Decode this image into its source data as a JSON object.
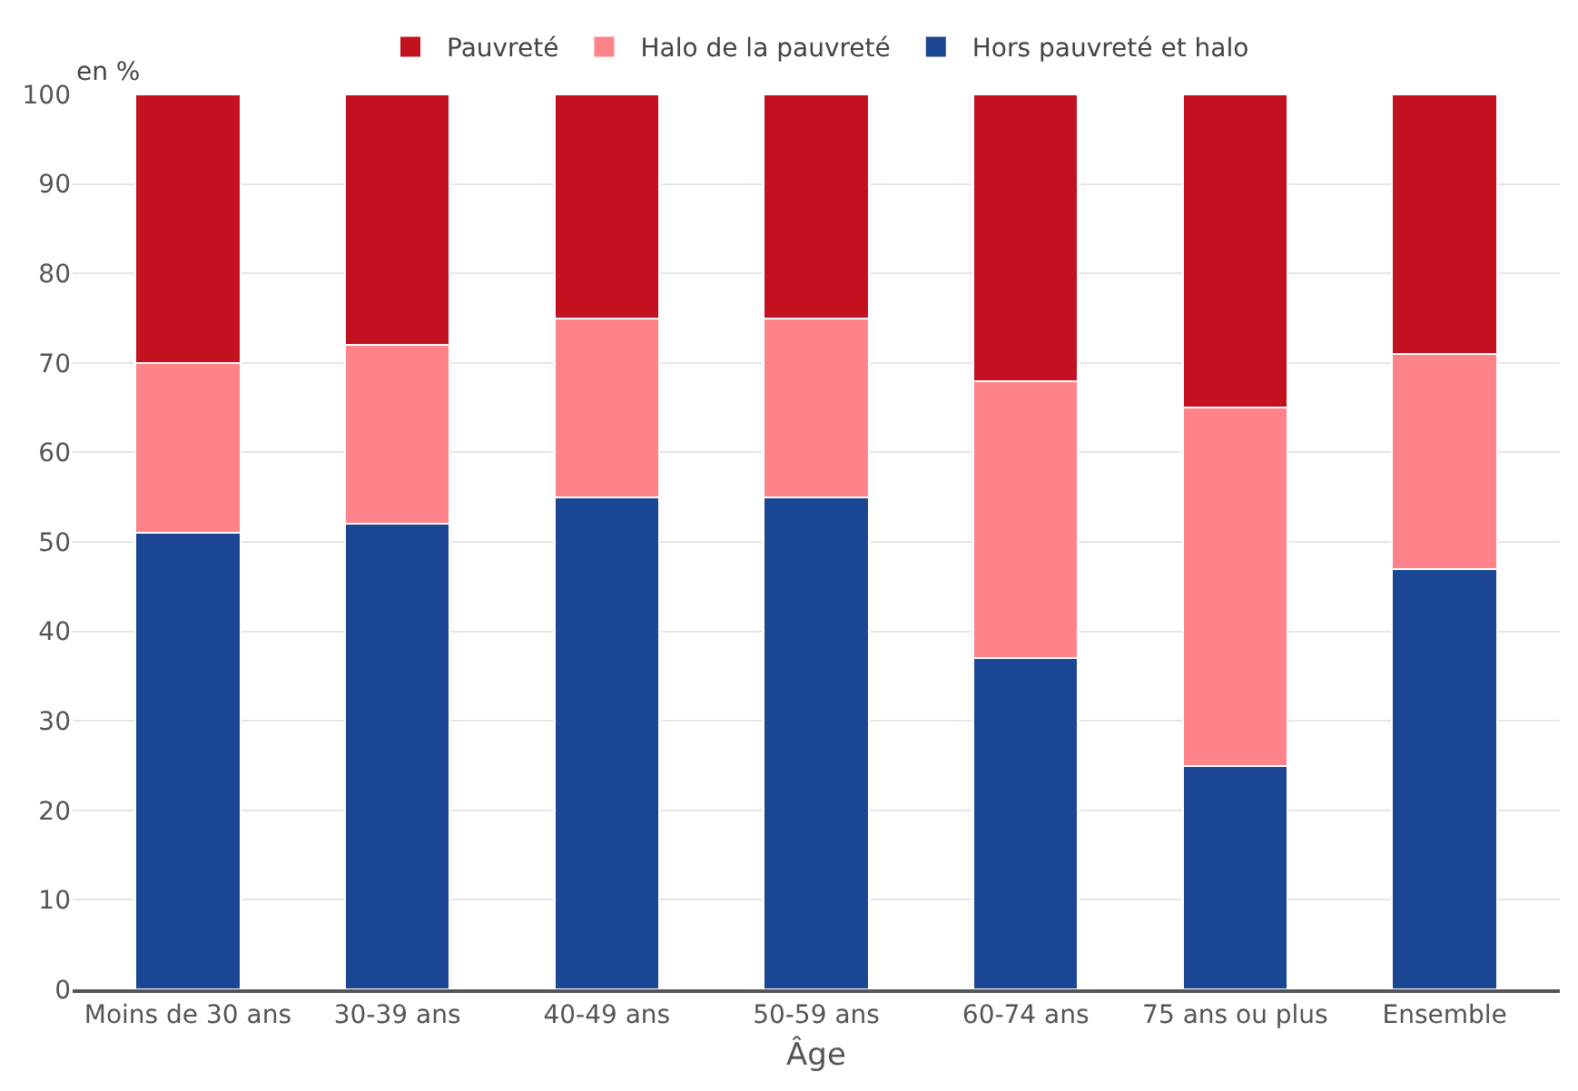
{
  "chart_data": {
    "type": "bar",
    "stacked": true,
    "xlabel": "Âge",
    "ylabel": "en %",
    "categories": [
      "Moins de 30 ans",
      "30-39 ans",
      "40-49 ans",
      "50-59 ans",
      "60-74 ans",
      "75 ans ou plus",
      "Ensemble"
    ],
    "series": [
      {
        "name": "Hors pauvreté et halo",
        "color": "#1a4693",
        "values": [
          51,
          52,
          55,
          55,
          37,
          25,
          47
        ]
      },
      {
        "name": "Halo de la pauvreté",
        "color": "#ff8389",
        "values": [
          19,
          20,
          20,
          20,
          31,
          40,
          24
        ]
      },
      {
        "name": "Pauvreté",
        "color": "#c4111f",
        "values": [
          30,
          28,
          25,
          25,
          32,
          35,
          29
        ]
      }
    ],
    "ylim": [
      0,
      100
    ],
    "yticks": [
      0,
      10,
      20,
      30,
      40,
      50,
      60,
      70,
      80,
      90,
      100
    ],
    "grid": "y",
    "legend": "top"
  }
}
